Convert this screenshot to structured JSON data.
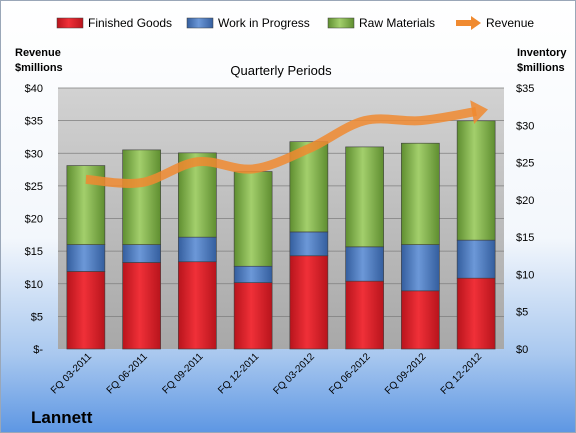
{
  "chart_data": {
    "type": "bar",
    "title": "Quarterly Periods",
    "left_axis_title": [
      "Revenue",
      "$millions"
    ],
    "right_axis_title": [
      "Inventory",
      "$millions"
    ],
    "company": "Lannett",
    "categories": [
      "FQ 03-2011",
      "FQ 06-2011",
      "FQ 09-2011",
      "FQ 12-2011",
      "FQ 03-2012",
      "FQ 06-2012",
      "FQ 09-2012",
      "FQ 12-2012"
    ],
    "left_ticks": [
      "$-",
      "$5",
      "$10",
      "$15",
      "$20",
      "$25",
      "$30",
      "$35",
      "$40"
    ],
    "right_ticks": [
      "$0",
      "$5",
      "$10",
      "$15",
      "$20",
      "$25",
      "$30",
      "$35"
    ],
    "left_ylim": [
      0,
      40
    ],
    "right_ylim": [
      0,
      35
    ],
    "stacked": true,
    "series": [
      {
        "name": "Finished Goods",
        "axis": "right",
        "color": "#e8202a",
        "values": [
          10.4,
          11.6,
          11.7,
          8.9,
          12.5,
          9.1,
          7.8,
          9.5
        ]
      },
      {
        "name": "Work in Progress",
        "axis": "right",
        "color": "#4f7fc8",
        "values": [
          3.6,
          2.4,
          3.3,
          2.2,
          3.2,
          4.6,
          6.2,
          5.1
        ]
      },
      {
        "name": "Raw Materials",
        "axis": "right",
        "color": "#8cbf52",
        "values": [
          10.6,
          12.7,
          11.3,
          12.7,
          12.1,
          13.4,
          13.6,
          16.0
        ]
      }
    ],
    "line_series": {
      "name": "Revenue",
      "axis": "left",
      "color": "#f08a30",
      "values": [
        26.0,
        25.5,
        28.7,
        27.6,
        30.7,
        35.0,
        35.0,
        36.4
      ]
    },
    "legend_position": "top",
    "grid": true
  }
}
